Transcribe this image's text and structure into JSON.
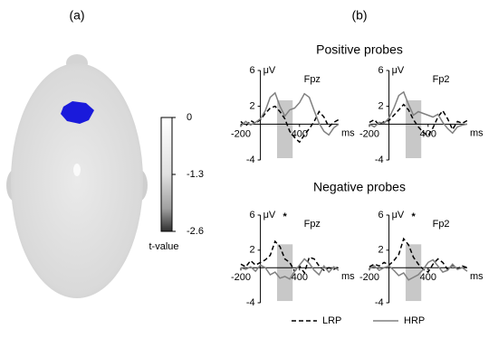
{
  "panel_labels": [
    "(a)",
    "(b)"
  ],
  "section_titles": [
    "Positive probes",
    "Negative probes"
  ],
  "chart_data": [
    {
      "type": "line",
      "title": "Fpz",
      "ylabel": "μV",
      "xlabel": "ms",
      "x": [
        -200,
        -150,
        -100,
        -50,
        0,
        50,
        100,
        150,
        200,
        250,
        300,
        350,
        400,
        450,
        500,
        550,
        600,
        650,
        700,
        750,
        800
      ],
      "xlim": [
        -200,
        800
      ],
      "xticks": [
        -200,
        400
      ],
      "ylim": [
        -4,
        6
      ],
      "yticks": [
        -4,
        2,
        6
      ],
      "highlight": [
        170,
        330
      ],
      "series": [
        {
          "name": "LRP",
          "color": "#000000",
          "dashed": true,
          "values": [
            0.3,
            -0.2,
            0.4,
            0.1,
            0.5,
            1.2,
            1.8,
            2.0,
            1.4,
            0.6,
            -0.8,
            -1.5,
            -2.0,
            -1.2,
            -0.5,
            0.3,
            1.4,
            0.8,
            -0.3,
            0.2,
            0.5
          ]
        },
        {
          "name": "HRP",
          "color": "#808080",
          "dashed": false,
          "values": [
            -0.2,
            0.3,
            -0.1,
            0.2,
            0.6,
            1.5,
            3.0,
            3.5,
            2.0,
            0.9,
            1.6,
            1.8,
            2.4,
            3.4,
            3.0,
            1.5,
            0.1,
            -0.8,
            -1.2,
            -0.4,
            0.0
          ]
        }
      ]
    },
    {
      "type": "line",
      "title": "Fp2",
      "ylabel": "μV",
      "xlabel": "ms",
      "x": [
        -200,
        -150,
        -100,
        -50,
        0,
        50,
        100,
        150,
        200,
        250,
        300,
        350,
        400,
        450,
        500,
        550,
        600,
        650,
        700,
        750,
        800
      ],
      "xlim": [
        -200,
        800
      ],
      "xticks": [
        -200,
        400
      ],
      "ylim": [
        -4,
        6
      ],
      "yticks": [
        -4,
        2,
        6
      ],
      "highlight": [
        170,
        330
      ],
      "series": [
        {
          "color": "#000000",
          "dashed": true,
          "values": [
            0.2,
            0.5,
            -0.1,
            0.3,
            0.4,
            1.0,
            1.6,
            2.2,
            1.6,
            0.5,
            -0.3,
            -0.9,
            -1.3,
            -0.4,
            0.8,
            1.5,
            0.6,
            -0.6,
            0.3,
            0.1,
            0.4
          ]
        },
        {
          "color": "#808080",
          "dashed": false,
          "values": [
            0.0,
            -0.3,
            0.2,
            0.1,
            0.7,
            1.8,
            3.2,
            3.6,
            2.2,
            1.0,
            1.4,
            1.2,
            1.0,
            0.8,
            1.1,
            0.2,
            -0.5,
            -1.0,
            -0.3,
            -0.1,
            0.0
          ]
        }
      ]
    },
    {
      "type": "line",
      "title": "Fpz",
      "ylabel": "μV",
      "xlabel": "ms",
      "annotation": "*",
      "x": [
        -200,
        -150,
        -100,
        -50,
        0,
        50,
        100,
        150,
        200,
        250,
        300,
        350,
        400,
        450,
        500,
        550,
        600,
        650,
        700,
        750,
        800
      ],
      "xlim": [
        -200,
        800
      ],
      "xticks": [
        -200,
        400
      ],
      "ylim": [
        -4,
        6
      ],
      "yticks": [
        -4,
        2,
        6
      ],
      "highlight": [
        170,
        330
      ],
      "series": [
        {
          "color": "#000000",
          "dashed": true,
          "values": [
            0.4,
            0.1,
            0.8,
            0.3,
            0.6,
            0.9,
            1.4,
            3.0,
            2.4,
            1.0,
            0.6,
            -0.4,
            0.2,
            -0.6,
            1.2,
            1.0,
            0.2,
            -0.3,
            0.0,
            -0.2,
            0.1
          ]
        },
        {
          "color": "#808080",
          "dashed": false,
          "values": [
            0.0,
            -0.2,
            0.1,
            -0.4,
            0.3,
            0.0,
            -0.8,
            -0.5,
            -1.2,
            -1.0,
            -1.3,
            -0.4,
            0.3,
            1.0,
            0.5,
            -0.3,
            -0.8,
            0.2,
            -0.5,
            0.1,
            -0.3
          ]
        }
      ]
    },
    {
      "type": "line",
      "title": "Fp2",
      "ylabel": "μV",
      "xlabel": "ms",
      "annotation": "*",
      "x": [
        -200,
        -150,
        -100,
        -50,
        0,
        50,
        100,
        150,
        200,
        250,
        300,
        350,
        400,
        450,
        500,
        550,
        600,
        650,
        700,
        750,
        800
      ],
      "xlim": [
        -200,
        800
      ],
      "xticks": [
        -200,
        400
      ],
      "ylim": [
        -4,
        6
      ],
      "yticks": [
        -4,
        2,
        6
      ],
      "highlight": [
        170,
        330
      ],
      "series": [
        {
          "color": "#000000",
          "dashed": true,
          "values": [
            0.1,
            0.4,
            0.2,
            0.6,
            0.3,
            0.8,
            1.5,
            3.3,
            2.6,
            1.2,
            0.4,
            -0.2,
            -0.5,
            0.4,
            1.0,
            0.6,
            -0.2,
            0.3,
            -0.1,
            0.2,
            0.0
          ]
        },
        {
          "color": "#808080",
          "dashed": false,
          "values": [
            -0.1,
            0.2,
            -0.3,
            0.0,
            0.2,
            -0.3,
            -0.9,
            -0.6,
            -1.4,
            -1.1,
            -0.8,
            -0.2,
            0.6,
            0.9,
            0.2,
            -0.5,
            -0.3,
            0.4,
            -0.2,
            0.0,
            -0.4
          ]
        }
      ]
    },
    {
      "type": "colorbar",
      "label": "t-value",
      "ylim": [
        -2.6,
        0
      ],
      "yticks": [
        0,
        -1.3,
        -2.6
      ]
    }
  ]
}
